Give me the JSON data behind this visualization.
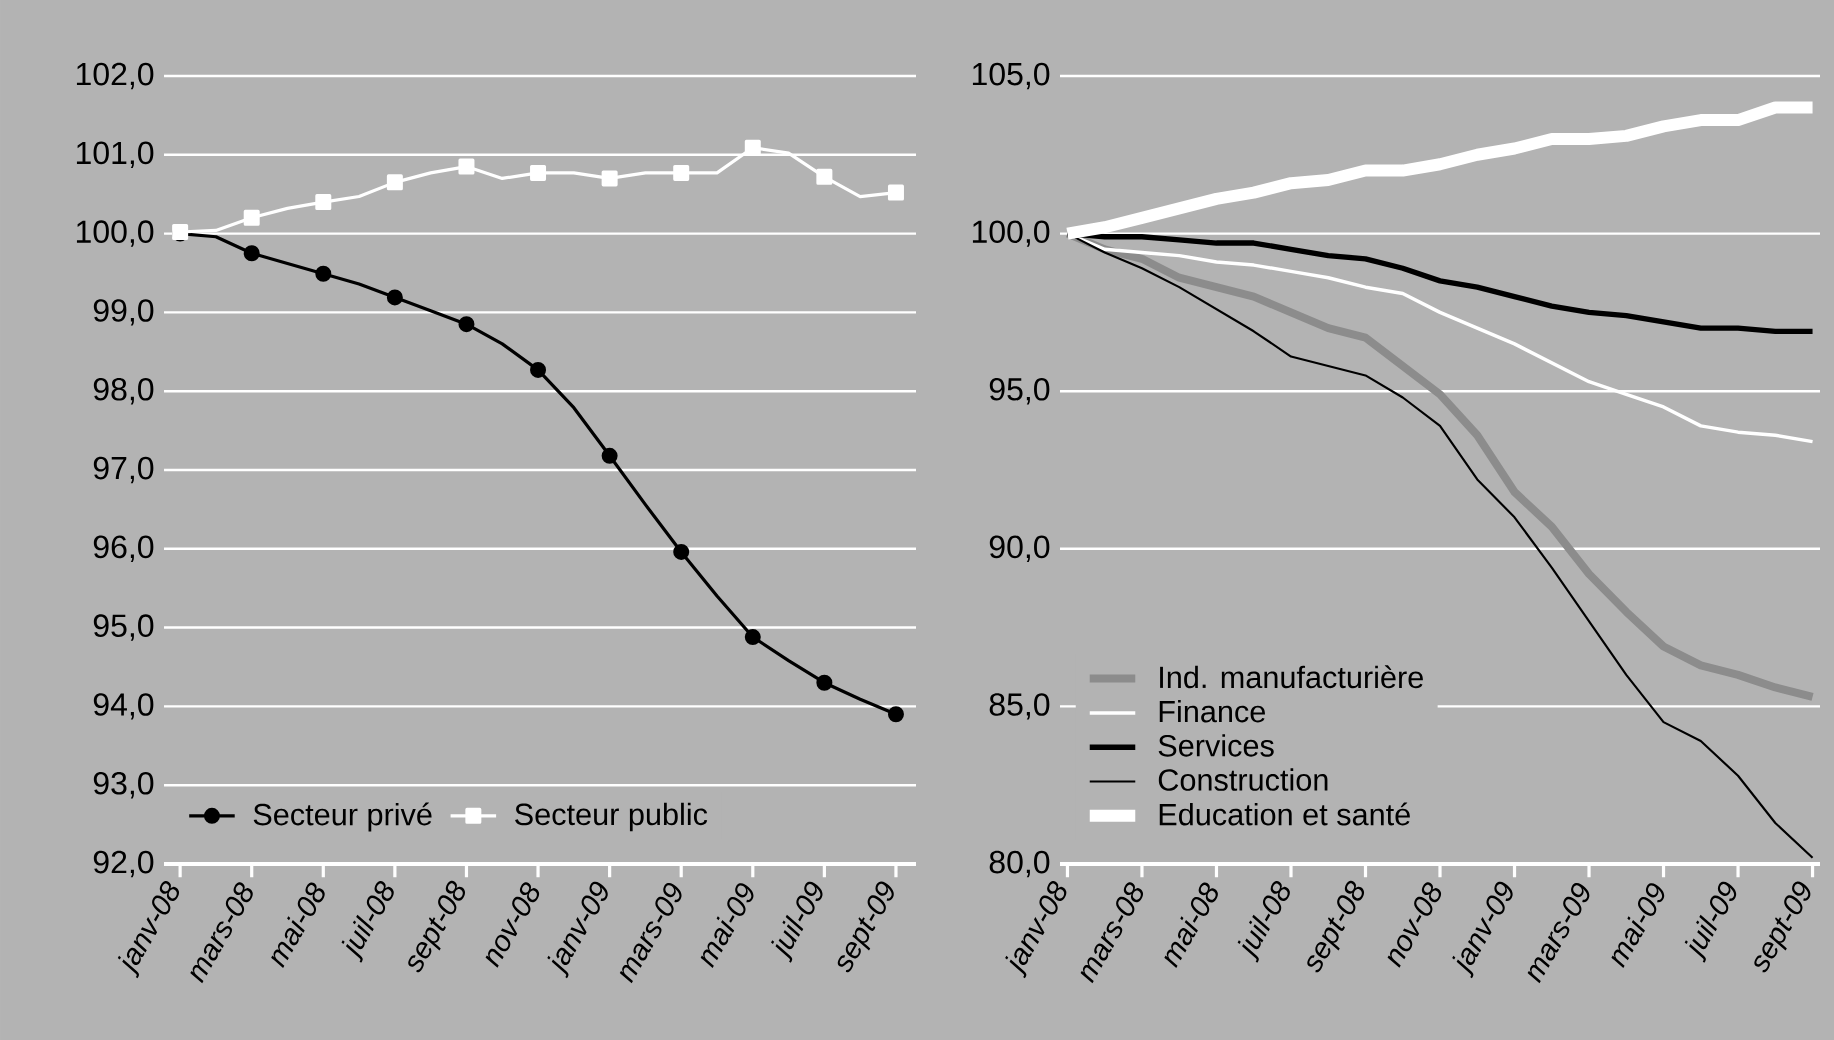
{
  "chart_data": [
    {
      "type": "line",
      "categories": [
        "janv-08",
        null,
        "mars-08",
        null,
        "mai-08",
        null,
        "juil-08",
        null,
        "sept-08",
        null,
        "nov-08",
        null,
        "janv-09",
        null,
        "mars-09",
        null,
        "mai-09",
        null,
        "juil-09",
        null,
        "sept-09"
      ],
      "series": [
        {
          "name": "Secteur privé",
          "color": "#000000",
          "marker": "circle",
          "values": [
            100.0,
            99.96,
            99.75,
            99.62,
            99.49,
            99.36,
            99.19,
            99.02,
            98.85,
            98.6,
            98.27,
            97.79,
            97.18,
            96.56,
            95.96,
            95.4,
            94.88,
            94.58,
            94.3,
            94.09,
            93.9
          ]
        },
        {
          "name": "Secteur public",
          "color": "#ffffff",
          "marker": "square",
          "values": [
            100.02,
            100.04,
            100.2,
            100.32,
            100.4,
            100.47,
            100.65,
            100.77,
            100.85,
            100.7,
            100.77,
            100.77,
            100.7,
            100.77,
            100.77,
            100.77,
            101.09,
            101.02,
            100.72,
            100.47,
            100.52
          ]
        }
      ],
      "ylim": [
        92,
        102
      ],
      "yticks": [
        {
          "value": 92,
          "label": "92,0"
        },
        {
          "value": 93,
          "label": "93,0"
        },
        {
          "value": 94,
          "label": "94,0"
        },
        {
          "value": 95,
          "label": "95,0"
        },
        {
          "value": 96,
          "label": "96,0"
        },
        {
          "value": 97,
          "label": "97,0"
        },
        {
          "value": 98,
          "label": "98,0"
        },
        {
          "value": 99,
          "label": "99,0"
        },
        {
          "value": 100,
          "label": "100,0"
        },
        {
          "value": 101,
          "label": "101,0"
        },
        {
          "value": 102,
          "label": "102,0"
        }
      ],
      "grid": "y",
      "legend": "bottom left"
    },
    {
      "type": "line",
      "categories": [
        "janv-08",
        null,
        "mars-08",
        null,
        "mai-08",
        null,
        "juil-08",
        null,
        "sept-08",
        null,
        "nov-08",
        null,
        "janv-09",
        null,
        "mars-09",
        null,
        "mai-09",
        null,
        "juil-09",
        null,
        "sept-09"
      ],
      "series": [
        {
          "name": "Ind. manufacturière",
          "color": "#8c8c8c",
          "values": [
            100.0,
            99.5,
            99.2,
            98.6,
            98.3,
            98.0,
            97.5,
            97.0,
            96.7,
            95.8,
            94.9,
            93.6,
            91.8,
            90.7,
            89.2,
            88.0,
            86.9,
            86.3,
            86.0,
            85.6,
            85.3
          ]
        },
        {
          "name": "Finance",
          "color": "#ffffff",
          "values": [
            100.0,
            99.5,
            99.4,
            99.3,
            99.1,
            99.0,
            98.8,
            98.6,
            98.3,
            98.1,
            97.5,
            97.0,
            96.5,
            95.9,
            95.3,
            94.9,
            94.5,
            93.9,
            93.7,
            93.6,
            93.4
          ]
        },
        {
          "name": "Services",
          "color": "#000000",
          "values": [
            100.0,
            99.9,
            99.9,
            99.8,
            99.7,
            99.7,
            99.5,
            99.3,
            99.2,
            98.9,
            98.5,
            98.3,
            98.0,
            97.7,
            97.5,
            97.4,
            97.2,
            97.0,
            97.0,
            96.9,
            96.9
          ]
        },
        {
          "name": "Construction",
          "color": "#000000",
          "values": [
            100.0,
            99.4,
            98.9,
            98.3,
            97.6,
            96.9,
            96.1,
            95.8,
            95.5,
            94.8,
            93.9,
            92.2,
            91.0,
            89.4,
            87.7,
            86.0,
            84.5,
            83.9,
            82.8,
            81.3,
            80.2
          ]
        },
        {
          "name": "Education et santé",
          "color": "#ffffff",
          "values": [
            100.0,
            100.2,
            100.5,
            100.8,
            101.1,
            101.3,
            101.6,
            101.7,
            102.0,
            102.0,
            102.2,
            102.5,
            102.7,
            103.0,
            103.0,
            103.1,
            103.4,
            103.6,
            103.6,
            104.0,
            104.0
          ]
        }
      ],
      "ylim": [
        80,
        105
      ],
      "yticks": [
        {
          "value": 80,
          "label": "80,0"
        },
        {
          "value": 85,
          "label": "85,0"
        },
        {
          "value": 90,
          "label": "90,0"
        },
        {
          "value": 95,
          "label": "95,0"
        },
        {
          "value": 100,
          "label": "100,0"
        },
        {
          "value": 105,
          "label": "105,0"
        }
      ],
      "grid": "y",
      "legend": "bottom left"
    }
  ]
}
